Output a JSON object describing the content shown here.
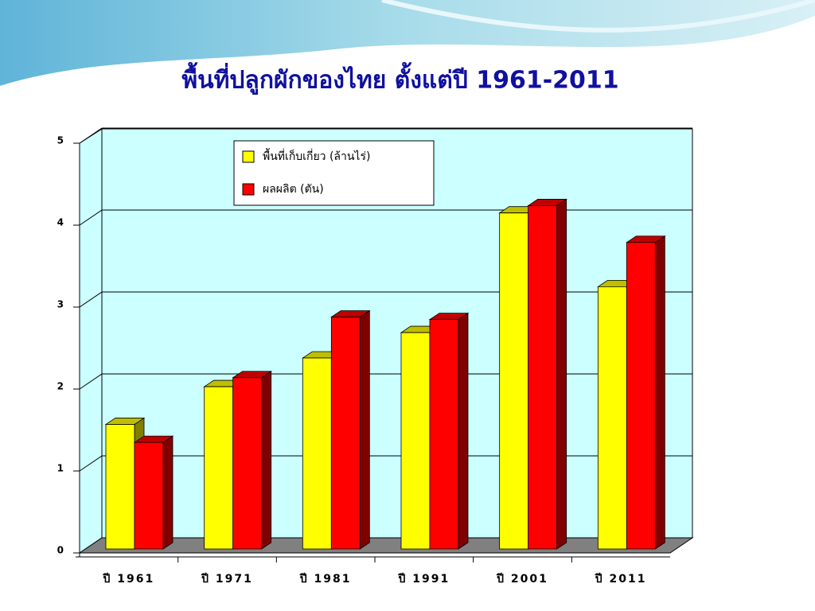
{
  "chart_data": {
    "type": "bar3d",
    "title": "พื้นที่ปลูกผักของไทย ตั้งแต่ปี 1961-2011",
    "categories": [
      "ปี 1961",
      "ปี 1971",
      "ปี 1981",
      "ปี 1991",
      "ปี 2001",
      "ปี 2011"
    ],
    "series": [
      {
        "name": "พื้นที่เก็บเกี่ยว (ล้านไร่)",
        "color": "#ffff00",
        "values": [
          1.52,
          1.98,
          2.33,
          2.64,
          4.1,
          3.2
        ]
      },
      {
        "name": "ผลผลิต (ตัน)",
        "color": "#ff0000",
        "values": [
          1.3,
          2.09,
          2.83,
          2.8,
          4.19,
          3.74
        ]
      }
    ],
    "ylim": [
      0,
      5
    ],
    "yticks": [
      0,
      1,
      2,
      3,
      4,
      5
    ],
    "grid": true
  }
}
